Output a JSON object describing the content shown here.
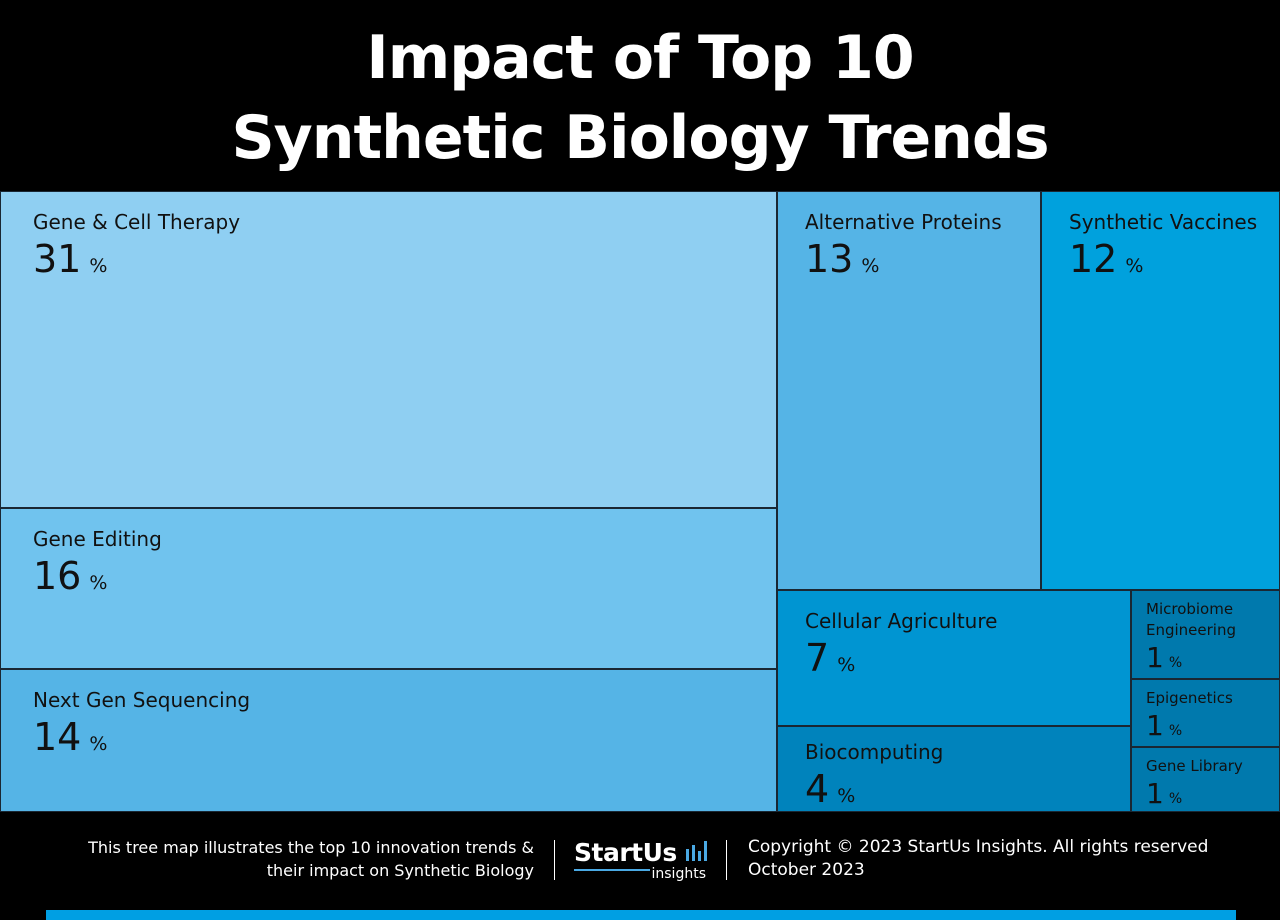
{
  "title": {
    "line1": "Impact of Top 10",
    "line2": "Synthetic Biology Trends"
  },
  "chart_data": {
    "type": "treemap",
    "title": "Impact of Top 10 Synthetic Biology Trends",
    "unit": "%",
    "items": [
      {
        "name": "Gene & Cell Therapy",
        "value": 31,
        "color": "#8fcff2"
      },
      {
        "name": "Gene Editing",
        "value": 16,
        "color": "#70c3ee"
      },
      {
        "name": "Next Gen Sequencing",
        "value": 14,
        "color": "#55b4e6"
      },
      {
        "name": "Alternative Proteins",
        "value": 13,
        "color": "#55b4e6"
      },
      {
        "name": "Synthetic Vaccines",
        "value": 12,
        "color": "#00a1dd"
      },
      {
        "name": "Cellular Agriculture",
        "value": 7,
        "color": "#0095d2"
      },
      {
        "name": "Biocomputing",
        "value": 4,
        "color": "#0083bc"
      },
      {
        "name": "Microbiome Engineering",
        "label_lines": [
          "Microbiome",
          "Engineering"
        ],
        "value": 1,
        "color": "#0079ad"
      },
      {
        "name": "Epigenetics",
        "value": 1,
        "color": "#0079ad"
      },
      {
        "name": "Gene Library",
        "value": 1,
        "color": "#0079ad"
      }
    ]
  },
  "footer": {
    "description_line1": "This tree map illustrates the top 10 innovation trends &",
    "description_line2": "their impact on Synthetic Biology",
    "logo_main": "StartUs",
    "logo_sub": "insights",
    "copyright": "Copyright © 2023 StartUs Insights. All rights reserved",
    "date": "October 2023"
  },
  "colors": {
    "background": "#000000",
    "accent": "#009fe3",
    "logo_accent": "#4aa9e4"
  }
}
